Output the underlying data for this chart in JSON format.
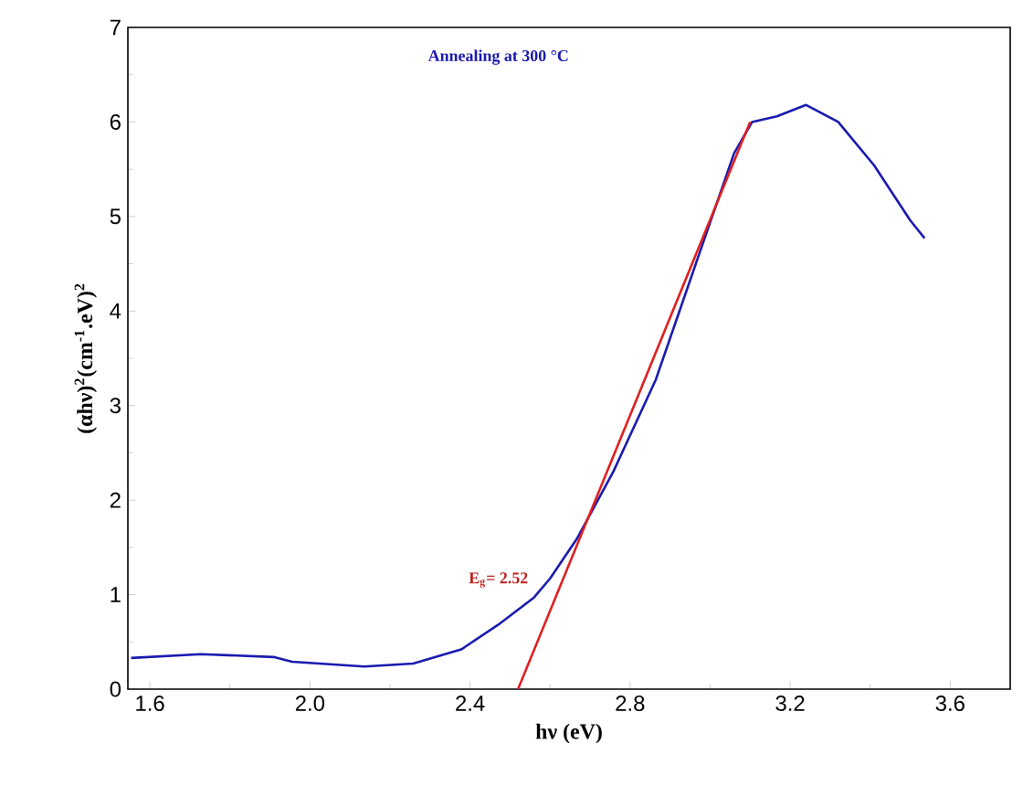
{
  "chart_data": {
    "type": "line",
    "xlabel": "hν (eV)",
    "ylabel": "(αhν)$^{2}$(cm$^{-1}$.eV)$^{2}$",
    "annotations": [
      "Annealing at 300 °C",
      "E$_{g}$= 2.52"
    ],
    "xlim": [
      1.545,
      3.75
    ],
    "ylim": [
      0,
      7
    ],
    "xticks": [
      1.6,
      {
        "value": 2.0,
        "label": "2.0"
      },
      2.4,
      2.8,
      3.2,
      3.6
    ],
    "yticks": [
      0,
      1,
      2,
      3,
      4,
      5,
      6,
      7
    ],
    "grid": false,
    "marker": "none",
    "line_style": "solid",
    "series": [
      {
        "color": "#1a1ab0",
        "x": [
          1.553,
          1.727,
          1.909,
          1.955,
          2.136,
          2.258,
          2.378,
          2.47,
          2.56,
          2.6,
          2.667,
          2.758,
          2.864,
          2.97,
          3.06,
          3.105,
          3.167,
          3.24,
          3.32,
          3.41,
          3.5,
          3.536
        ],
        "values": [
          0.33,
          0.37,
          0.34,
          0.29,
          0.24,
          0.27,
          0.42,
          0.68,
          0.97,
          1.17,
          1.59,
          2.3,
          3.27,
          4.57,
          5.67,
          6.0,
          6.06,
          6.18,
          6.0,
          5.54,
          4.96,
          4.77
        ]
      },
      {
        "color": "#e02020",
        "x": [
          2.52,
          3.1
        ],
        "values": [
          0,
          6.0
        ]
      }
    ]
  }
}
